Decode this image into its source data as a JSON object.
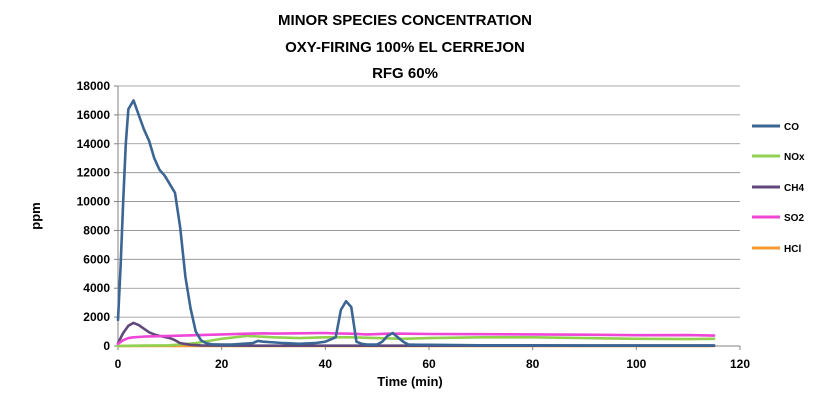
{
  "chart_data": {
    "type": "line",
    "title": [
      "MINOR SPECIES CONCENTRATION",
      "OXY-FIRING 100% EL CERREJON",
      "RFG 60%"
    ],
    "xlabel": "Time (min)",
    "ylabel": "ppm",
    "xlim": [
      0,
      120
    ],
    "ylim": [
      0,
      18000
    ],
    "xticks": [
      0,
      20,
      40,
      60,
      80,
      100,
      120
    ],
    "yticks": [
      0,
      2000,
      4000,
      6000,
      8000,
      10000,
      12000,
      14000,
      16000,
      18000
    ],
    "grid": "horizontal",
    "legend": "right",
    "series": [
      {
        "name": "CO",
        "color": "#3b6593",
        "points": [
          [
            0,
            1800
          ],
          [
            0.5,
            5500
          ],
          [
            1,
            10000
          ],
          [
            1.5,
            14000
          ],
          [
            2,
            16400
          ],
          [
            3,
            17000
          ],
          [
            4,
            16000
          ],
          [
            5,
            15000
          ],
          [
            6,
            14200
          ],
          [
            7,
            13000
          ],
          [
            8,
            12200
          ],
          [
            9,
            11800
          ],
          [
            10,
            11200
          ],
          [
            11,
            10600
          ],
          [
            12,
            8200
          ],
          [
            13,
            4800
          ],
          [
            14,
            2600
          ],
          [
            15,
            1000
          ],
          [
            16,
            400
          ],
          [
            17,
            200
          ],
          [
            18,
            120
          ],
          [
            20,
            100
          ],
          [
            22,
            100
          ],
          [
            24,
            150
          ],
          [
            26,
            200
          ],
          [
            27,
            350
          ],
          [
            28,
            300
          ],
          [
            30,
            250
          ],
          [
            32,
            200
          ],
          [
            35,
            150
          ],
          [
            38,
            200
          ],
          [
            40,
            300
          ],
          [
            42,
            600
          ],
          [
            43,
            2500
          ],
          [
            44,
            3100
          ],
          [
            45,
            2700
          ],
          [
            46,
            300
          ],
          [
            47,
            150
          ],
          [
            48,
            100
          ],
          [
            50,
            100
          ],
          [
            51,
            300
          ],
          [
            52,
            700
          ],
          [
            53,
            900
          ],
          [
            54,
            600
          ],
          [
            55,
            300
          ],
          [
            56,
            100
          ],
          [
            58,
            80
          ],
          [
            60,
            80
          ],
          [
            70,
            50
          ],
          [
            80,
            50
          ],
          [
            90,
            40
          ],
          [
            100,
            40
          ],
          [
            110,
            40
          ],
          [
            115,
            40
          ]
        ]
      },
      {
        "name": "NOx",
        "color": "#92d050",
        "points": [
          [
            0,
            0
          ],
          [
            5,
            30
          ],
          [
            10,
            50
          ],
          [
            15,
            200
          ],
          [
            20,
            500
          ],
          [
            25,
            700
          ],
          [
            30,
            600
          ],
          [
            35,
            550
          ],
          [
            40,
            600
          ],
          [
            45,
            600
          ],
          [
            50,
            550
          ],
          [
            55,
            500
          ],
          [
            60,
            550
          ],
          [
            70,
            600
          ],
          [
            80,
            600
          ],
          [
            90,
            550
          ],
          [
            100,
            500
          ],
          [
            110,
            480
          ],
          [
            115,
            500
          ]
        ]
      },
      {
        "name": "CH4",
        "color": "#60497a",
        "points": [
          [
            0,
            200
          ],
          [
            1,
            900
          ],
          [
            2,
            1400
          ],
          [
            3,
            1600
          ],
          [
            4,
            1450
          ],
          [
            5,
            1200
          ],
          [
            6,
            950
          ],
          [
            7,
            800
          ],
          [
            8,
            700
          ],
          [
            10,
            550
          ],
          [
            11,
            400
          ],
          [
            12,
            200
          ],
          [
            14,
            80
          ],
          [
            16,
            40
          ],
          [
            20,
            30
          ],
          [
            30,
            20
          ],
          [
            40,
            20
          ],
          [
            45,
            20
          ],
          [
            50,
            20
          ],
          [
            60,
            20
          ],
          [
            80,
            20
          ],
          [
            100,
            20
          ],
          [
            115,
            20
          ]
        ]
      },
      {
        "name": "SO2",
        "color": "#ee46d6",
        "points": [
          [
            0,
            150
          ],
          [
            1,
            400
          ],
          [
            2,
            550
          ],
          [
            3,
            600
          ],
          [
            5,
            650
          ],
          [
            8,
            680
          ],
          [
            10,
            700
          ],
          [
            15,
            750
          ],
          [
            20,
            800
          ],
          [
            25,
            850
          ],
          [
            28,
            880
          ],
          [
            30,
            860
          ],
          [
            35,
            880
          ],
          [
            40,
            900
          ],
          [
            42,
            870
          ],
          [
            45,
            850
          ],
          [
            48,
            800
          ],
          [
            52,
            850
          ],
          [
            55,
            850
          ],
          [
            60,
            830
          ],
          [
            70,
            820
          ],
          [
            80,
            800
          ],
          [
            90,
            780
          ],
          [
            100,
            750
          ],
          [
            110,
            760
          ],
          [
            115,
            720
          ]
        ]
      },
      {
        "name": "HCl",
        "color": "#f59a2e",
        "points": [
          [
            0,
            0
          ],
          [
            20,
            5
          ],
          [
            40,
            5
          ],
          [
            60,
            5
          ],
          [
            80,
            5
          ],
          [
            100,
            5
          ],
          [
            115,
            5
          ]
        ]
      }
    ]
  }
}
